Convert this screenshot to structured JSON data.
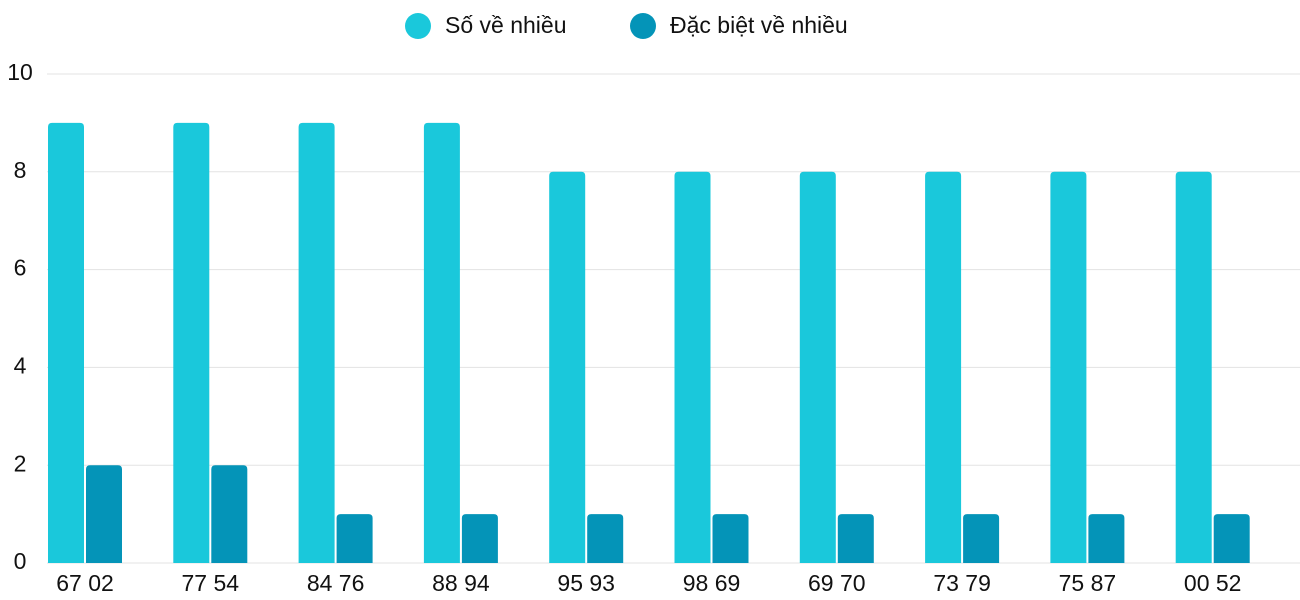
{
  "chart_data": {
    "type": "bar",
    "categories": [
      "67 02",
      "77 54",
      "84 76",
      "88 94",
      "95 93",
      "98 69",
      "69 70",
      "73 79",
      "75 87",
      "00 52"
    ],
    "series": [
      {
        "name": "Số về nhiều",
        "color": "#1ac8db",
        "values": [
          9,
          9,
          9,
          9,
          8,
          8,
          8,
          8,
          8,
          8
        ]
      },
      {
        "name": "Đặc biệt về nhiều",
        "color": "#0494b8",
        "values": [
          2,
          2,
          1,
          1,
          1,
          1,
          1,
          1,
          1,
          1
        ]
      }
    ],
    "ylim": [
      0,
      10
    ],
    "yticks": [
      0,
      2,
      4,
      6,
      8,
      10
    ],
    "grid": true,
    "legend": "top"
  }
}
